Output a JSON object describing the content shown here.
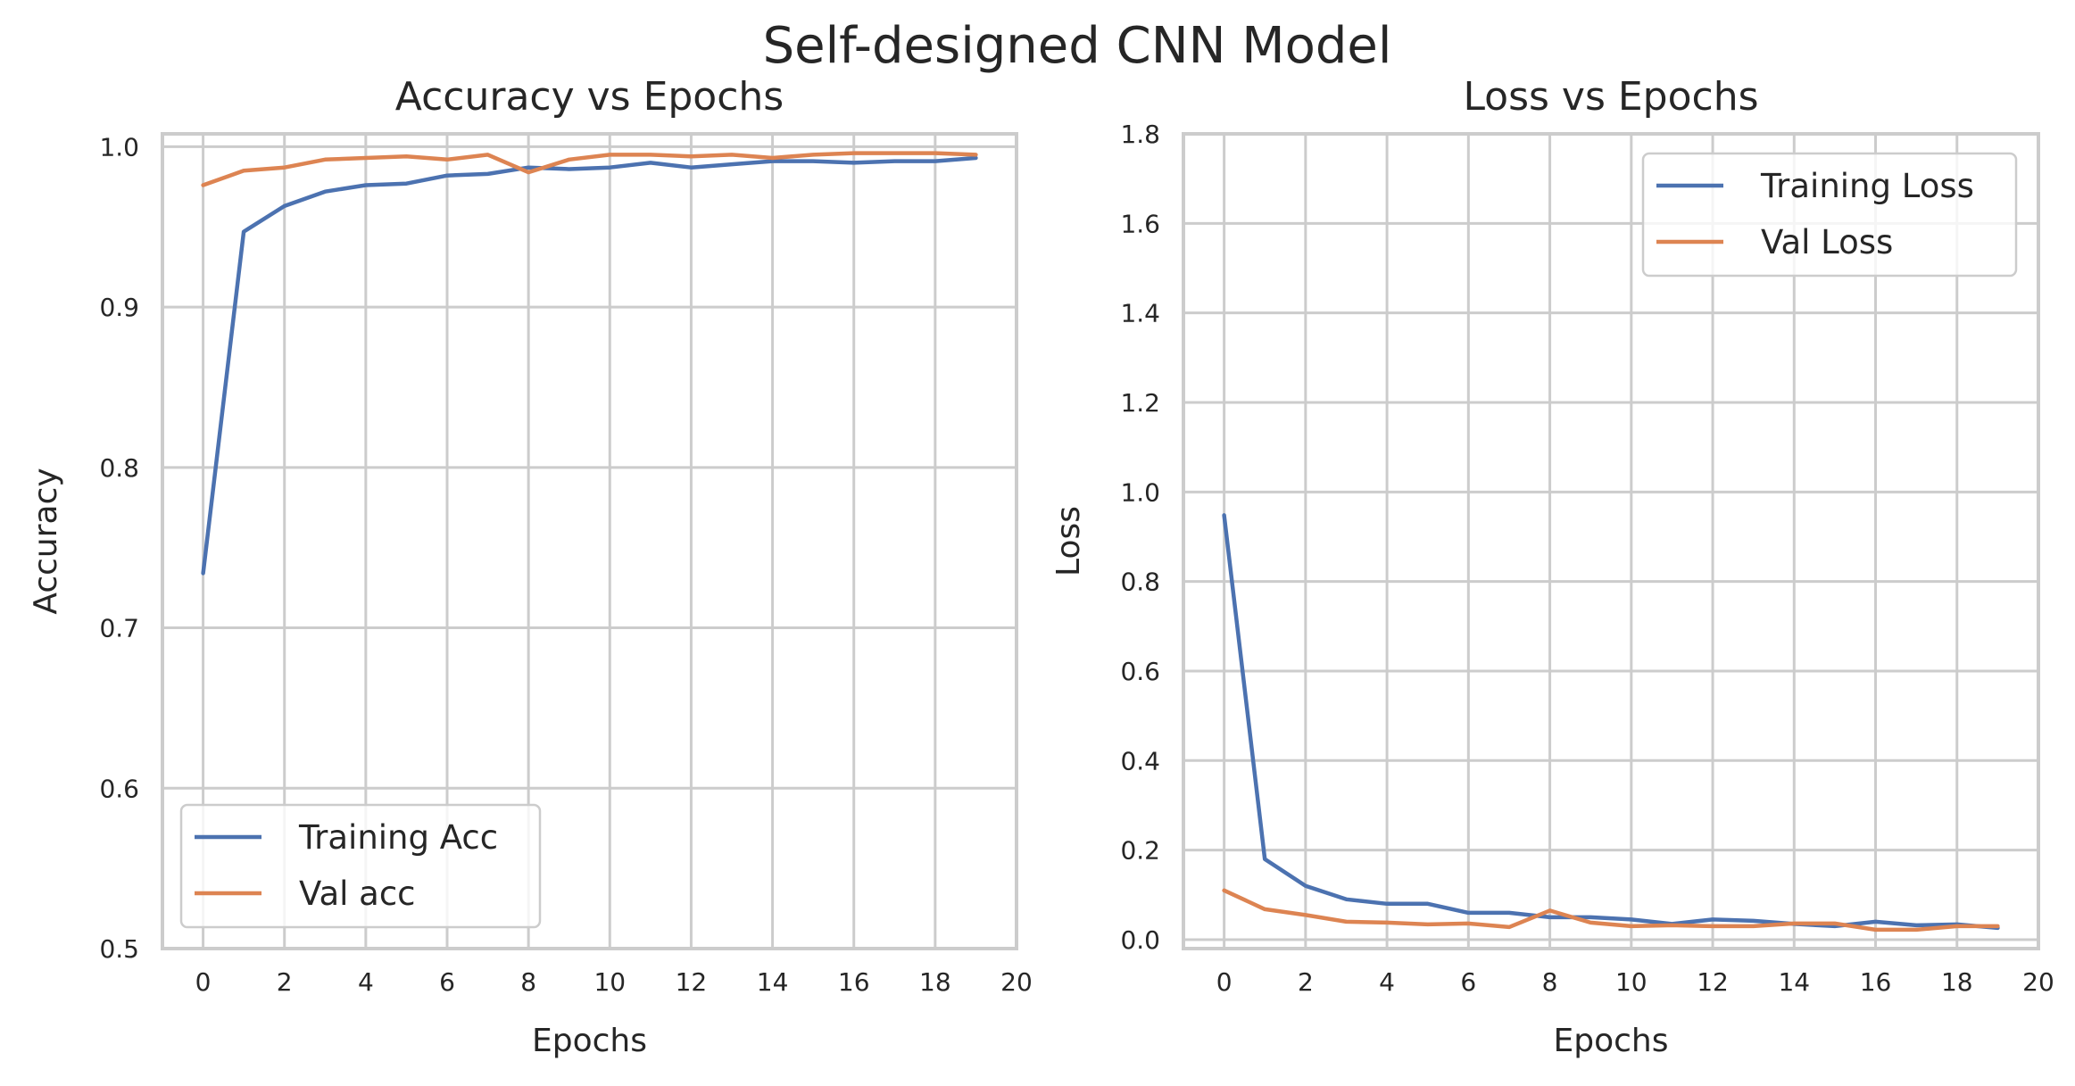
{
  "figure": {
    "title": "Self-designed CNN Model"
  },
  "colors": {
    "blue": "#4c72b0",
    "orange": "#dd8452",
    "grid": "#cccccc",
    "text": "#262626"
  },
  "chart_data": [
    {
      "type": "line",
      "title": "Accuracy vs Epochs",
      "xlabel": "Epochs",
      "ylabel": "Accuracy",
      "xlim": [
        -1,
        20
      ],
      "ylim": [
        0.5,
        1.008
      ],
      "xticks": [
        0,
        2,
        4,
        6,
        8,
        10,
        12,
        14,
        16,
        18,
        20
      ],
      "yticks": [
        0.5,
        0.6,
        0.7,
        0.8,
        0.9,
        1.0
      ],
      "ytick_labels": [
        "0.5",
        "0.6",
        "0.7",
        "0.8",
        "0.9",
        "1.0"
      ],
      "grid": true,
      "legend_position": "lower-left",
      "x": [
        0,
        1,
        2,
        3,
        4,
        5,
        6,
        7,
        8,
        9,
        10,
        11,
        12,
        13,
        14,
        15,
        16,
        17,
        18,
        19
      ],
      "series": [
        {
          "name": "Training Acc",
          "color": "#4c72b0",
          "values": [
            0.734,
            0.947,
            0.963,
            0.972,
            0.976,
            0.977,
            0.982,
            0.983,
            0.987,
            0.986,
            0.987,
            0.99,
            0.987,
            0.989,
            0.991,
            0.991,
            0.99,
            0.991,
            0.991,
            0.993
          ]
        },
        {
          "name": "Val acc",
          "color": "#dd8452",
          "values": [
            0.976,
            0.985,
            0.987,
            0.992,
            0.993,
            0.994,
            0.992,
            0.995,
            0.984,
            0.992,
            0.995,
            0.995,
            0.994,
            0.995,
            0.993,
            0.995,
            0.996,
            0.996,
            0.996,
            0.995
          ]
        }
      ]
    },
    {
      "type": "line",
      "title": "Loss vs Epochs",
      "xlabel": "Epochs",
      "ylabel": "Loss",
      "xlim": [
        -1,
        20
      ],
      "ylim": [
        -0.02,
        1.8
      ],
      "xticks": [
        0,
        2,
        4,
        6,
        8,
        10,
        12,
        14,
        16,
        18,
        20
      ],
      "yticks": [
        0.0,
        0.2,
        0.4,
        0.6,
        0.8,
        1.0,
        1.2,
        1.4,
        1.6,
        1.8
      ],
      "ytick_labels": [
        "0.0",
        "0.2",
        "0.4",
        "0.6",
        "0.8",
        "1.0",
        "1.2",
        "1.4",
        "1.6",
        "1.8"
      ],
      "grid": true,
      "legend_position": "upper-right",
      "x": [
        0,
        1,
        2,
        3,
        4,
        5,
        6,
        7,
        8,
        9,
        10,
        11,
        12,
        13,
        14,
        15,
        16,
        17,
        18,
        19
      ],
      "series": [
        {
          "name": "Training Loss",
          "color": "#4c72b0",
          "values": [
            0.948,
            0.18,
            0.12,
            0.09,
            0.08,
            0.08,
            0.06,
            0.06,
            0.05,
            0.05,
            0.045,
            0.035,
            0.045,
            0.042,
            0.035,
            0.03,
            0.04,
            0.032,
            0.034,
            0.026
          ]
        },
        {
          "name": "Val Loss",
          "color": "#dd8452",
          "values": [
            0.11,
            0.068,
            0.055,
            0.04,
            0.038,
            0.034,
            0.036,
            0.028,
            0.065,
            0.038,
            0.03,
            0.032,
            0.03,
            0.03,
            0.036,
            0.036,
            0.022,
            0.022,
            0.03,
            0.03
          ]
        }
      ]
    }
  ]
}
